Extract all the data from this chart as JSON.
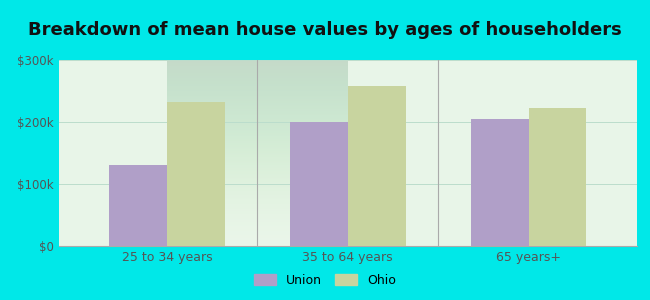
{
  "title": "Breakdown of mean house values by ages of householders",
  "categories": [
    "25 to 34 years",
    "35 to 64 years",
    "65 years+"
  ],
  "union_values": [
    130000,
    200000,
    205000
  ],
  "ohio_values": [
    232000,
    258000,
    222000
  ],
  "union_color": "#b09fc8",
  "ohio_color": "#c8d49f",
  "ylim": [
    0,
    300000
  ],
  "yticks": [
    0,
    100000,
    200000,
    300000
  ],
  "ytick_labels": [
    "$0",
    "$100k",
    "$200k",
    "$300k"
  ],
  "legend_labels": [
    "Union",
    "Ohio"
  ],
  "background_outer": "#00e8e8",
  "background_inner_top": "#e8f5e8",
  "background_inner_bottom": "#f8fff8",
  "title_fontsize": 13,
  "bar_width": 0.32,
  "tick_color": "#555555",
  "separator_color": "#aaaaaa",
  "grid_color": "#bbddcc"
}
